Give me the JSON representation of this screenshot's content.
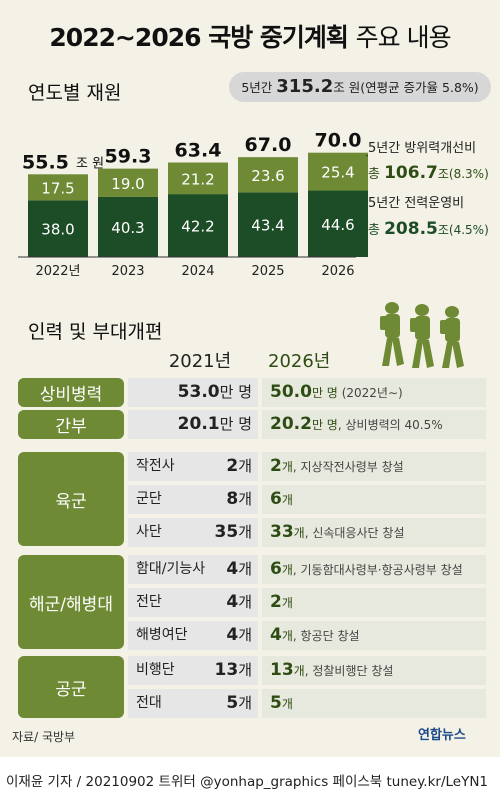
{
  "title_bold": "2022∼2026 국방 중기계획",
  "title_light": "주요 내용",
  "section1": {
    "heading": "연도별 재원",
    "summary_prefix": "5년간",
    "summary_value": "315.2",
    "summary_suffix": "조 원(연평균 증가율 5.8%)"
  },
  "chart_data": {
    "type": "bar",
    "stacked": true,
    "categories": [
      "2022년",
      "2023",
      "2024",
      "2025",
      "2026"
    ],
    "series": [
      {
        "name": "5년간 전력운영비",
        "values": [
          38.0,
          40.3,
          42.2,
          43.4,
          44.6
        ],
        "color": "#1d4d27"
      },
      {
        "name": "5년간 방위력개선비",
        "values": [
          17.5,
          19.0,
          21.2,
          23.6,
          25.4
        ],
        "color": "#6e8a34"
      }
    ],
    "totals": [
      "55.5",
      "59.3",
      "63.4",
      "67.0",
      "70.0"
    ],
    "total_unit": "조 원",
    "labels_bottom": [
      "38.0",
      "40.3",
      "42.2",
      "43.4",
      "44.6"
    ],
    "labels_top": [
      "17.5",
      "19.0",
      "21.2",
      "23.6",
      "25.4"
    ],
    "annotations": {
      "top_line1": "5년간 방위력개선비",
      "top_prefix": "총",
      "top_value": "106.7",
      "top_suffix": "조(8.3%)",
      "bottom_line1": "5년간 전력운영비",
      "bottom_prefix": "총",
      "bottom_value": "208.5",
      "bottom_suffix": "조(4.5%)"
    }
  },
  "section2": {
    "heading": "인력 및 부대개편",
    "col_2021": "2021년",
    "col_2026": "2026년",
    "rows": [
      {
        "cat": "상비병력",
        "v2021": "53.0",
        "u2021": "만 명",
        "v2026": "50.0",
        "u2026": "만 명",
        "note": "(2022년∼)"
      },
      {
        "cat": "간부",
        "v2021": "20.1",
        "u2021": "만 명",
        "v2026": "20.2",
        "u2026": "만 명,",
        "note": "상비병력의 40.5%"
      }
    ],
    "groups": [
      {
        "cat": "육군",
        "items": [
          {
            "name": "작전사",
            "v2021": "2",
            "v2026": "2",
            "unit": "개",
            "note": ", 지상작전사령부 창설"
          },
          {
            "name": "군단",
            "v2021": "8",
            "v2026": "6",
            "unit": "개",
            "note": ""
          },
          {
            "name": "사단",
            "v2021": "35",
            "v2026": "33",
            "unit": "개",
            "note": ", 신속대응사단 창설"
          }
        ]
      },
      {
        "cat": "해군/해병대",
        "items": [
          {
            "name": "함대/기능사",
            "v2021": "4",
            "v2026": "6",
            "unit": "개",
            "note": ", 기동함대사령부·항공사령부 창설"
          },
          {
            "name": "전단",
            "v2021": "4",
            "v2026": "2",
            "unit": "개",
            "note": ""
          },
          {
            "name": "해병여단",
            "v2021": "4",
            "v2026": "4",
            "unit": "개",
            "note": ", 항공단 창설"
          }
        ]
      },
      {
        "cat": "공군",
        "items": [
          {
            "name": "비행단",
            "v2021": "13",
            "v2026": "13",
            "unit": "개",
            "note": ", 정찰비행단 창설"
          },
          {
            "name": "전대",
            "v2021": "5",
            "v2026": "5",
            "unit": "개",
            "note": ""
          }
        ]
      }
    ]
  },
  "source": "자료/ 국방부",
  "logo": "연합뉴스",
  "footer": "이재윤 기자 / 20210902   트위터 @yonhap_graphics  페이스북 tuney.kr/LeYN1",
  "colors": {
    "dark_green": "#1d4d27",
    "olive": "#6e8a34",
    "bg": "#f4f1e6"
  }
}
